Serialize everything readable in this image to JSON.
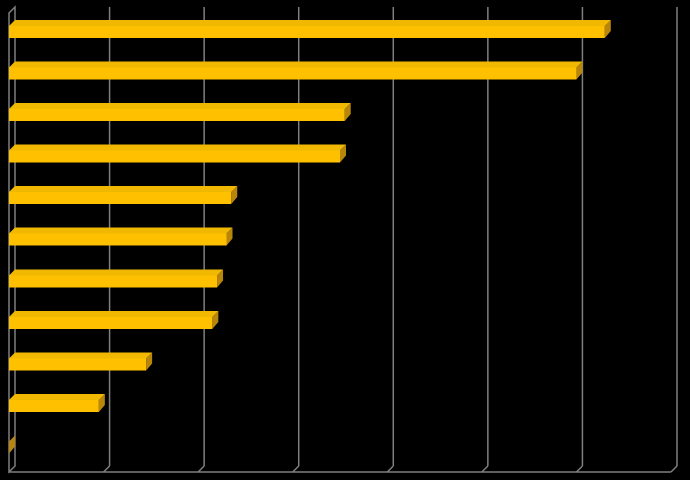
{
  "chart_data": {
    "type": "bar",
    "orientation": "horizontal",
    "style": "3d",
    "colors": {
      "background": "#000000",
      "bar_front": "#FFC000",
      "bar_top": "#F0B800",
      "bar_side": "#B8860B",
      "grid": "#7F7F7F"
    },
    "grid": true,
    "legend": "none",
    "title": "",
    "xlabel": "",
    "ylabel": "",
    "xlim": [
      0,
      7
    ],
    "categories": [
      "",
      "",
      "",
      "",
      "",
      "",
      "",
      "",
      "",
      "",
      ""
    ],
    "values": [
      6.3,
      6.0,
      3.55,
      3.5,
      2.35,
      2.3,
      2.2,
      2.15,
      1.45,
      0.95,
      0.0
    ]
  }
}
